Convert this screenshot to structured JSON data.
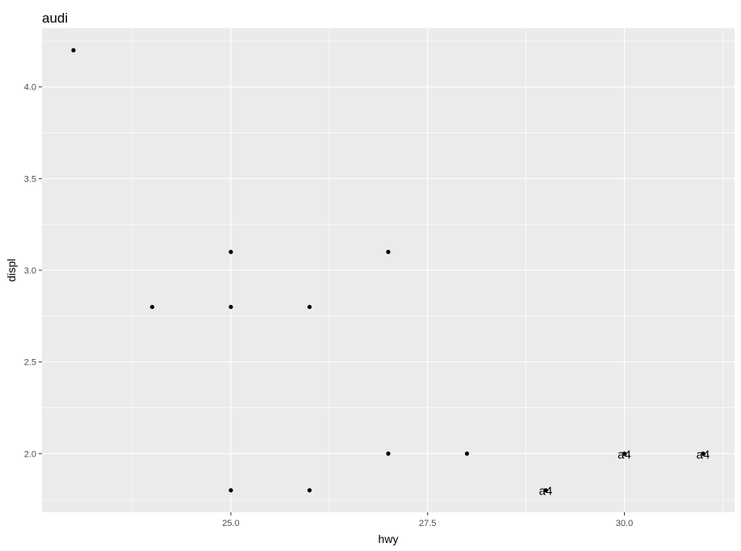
{
  "chart_data": {
    "type": "scatter",
    "title": "audi",
    "xlabel": "hwy",
    "ylabel": "displ",
    "xlim": [
      22.6,
      31.4
    ],
    "ylim": [
      1.68,
      4.32
    ],
    "xticks": [
      25.0,
      27.5,
      30.0
    ],
    "xtick_labels": [
      "25.0",
      "27.5",
      "30.0"
    ],
    "yticks": [
      2.0,
      2.5,
      3.0,
      3.5,
      4.0
    ],
    "ytick_labels": [
      "2.0",
      "2.5",
      "3.0",
      "3.5",
      "4.0"
    ],
    "grid": true,
    "background": "#EBEBEB",
    "point_color": "#000000",
    "points": [
      {
        "x": 23,
        "y": 4.2,
        "label": ""
      },
      {
        "x": 24,
        "y": 2.8,
        "label": ""
      },
      {
        "x": 25,
        "y": 3.1,
        "label": ""
      },
      {
        "x": 25,
        "y": 2.8,
        "label": ""
      },
      {
        "x": 25,
        "y": 1.8,
        "label": ""
      },
      {
        "x": 26,
        "y": 2.8,
        "label": ""
      },
      {
        "x": 26,
        "y": 1.8,
        "label": ""
      },
      {
        "x": 27,
        "y": 3.1,
        "label": ""
      },
      {
        "x": 27,
        "y": 2.0,
        "label": ""
      },
      {
        "x": 28,
        "y": 2.0,
        "label": ""
      },
      {
        "x": 29,
        "y": 1.8,
        "label": "a4"
      },
      {
        "x": 30,
        "y": 2.0,
        "label": "a4"
      },
      {
        "x": 31,
        "y": 2.0,
        "label": "a4"
      }
    ]
  }
}
